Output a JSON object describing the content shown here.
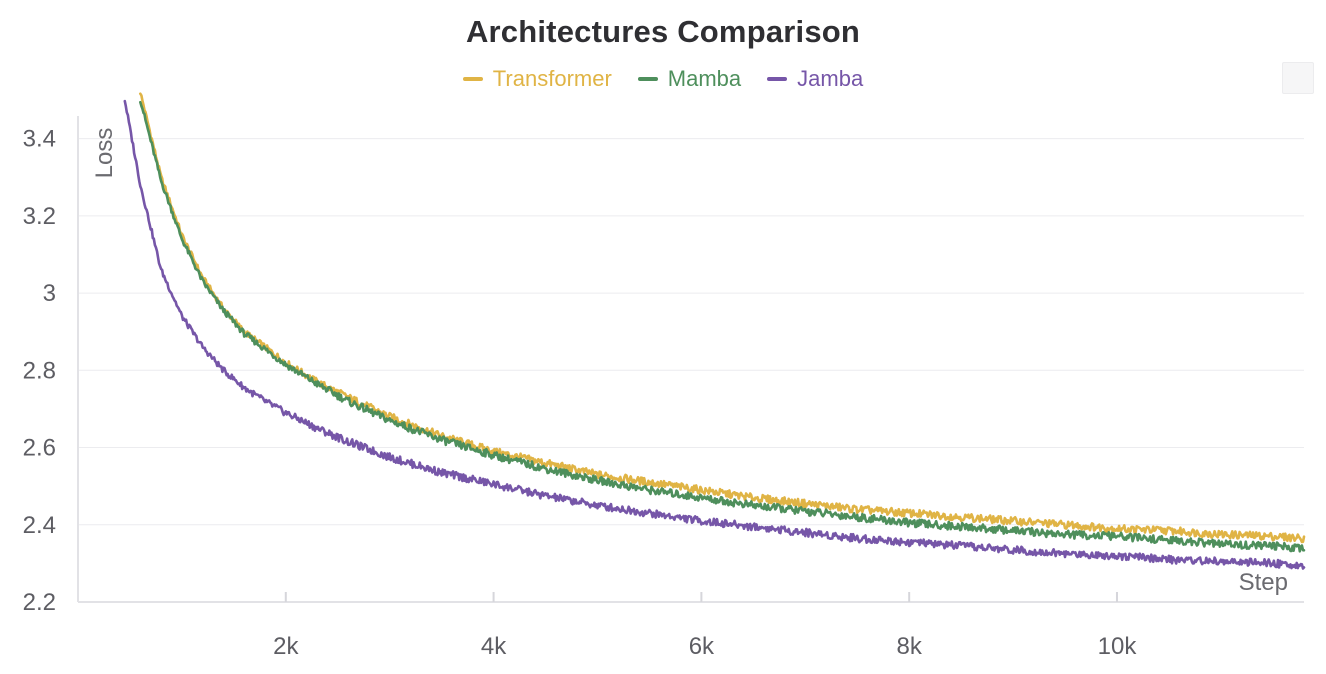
{
  "chart_data": {
    "type": "line",
    "title": "Architectures Comparison",
    "xlabel": "Step",
    "ylabel": "Loss",
    "xlim": [
      0,
      11800
    ],
    "ylim": [
      2.2,
      3.5
    ],
    "x_ticks": [
      {
        "value": 2000,
        "label": "2k"
      },
      {
        "value": 4000,
        "label": "4k"
      },
      {
        "value": 6000,
        "label": "6k"
      },
      {
        "value": 8000,
        "label": "8k"
      },
      {
        "value": 10000,
        "label": "10k"
      }
    ],
    "y_ticks": [
      {
        "value": 2.2,
        "label": "2.2"
      },
      {
        "value": 2.4,
        "label": "2.4"
      },
      {
        "value": 2.6,
        "label": "2.6"
      },
      {
        "value": 2.8,
        "label": "2.8"
      },
      {
        "value": 3.0,
        "label": "3"
      },
      {
        "value": 3.2,
        "label": "3.2"
      },
      {
        "value": 3.4,
        "label": "3.4"
      }
    ],
    "grid": true,
    "legend_position": "top-center",
    "series": [
      {
        "name": "Transformer",
        "color": "#e0b445",
        "x": [
          600,
          800,
          1000,
          1200,
          1400,
          1600,
          1800,
          2000,
          2300,
          2600,
          3000,
          3500,
          4000,
          4500,
          5000,
          5500,
          6000,
          6500,
          7000,
          7500,
          8000,
          8500,
          9000,
          9500,
          10000,
          10500,
          11000,
          11500,
          11800
        ],
        "y": [
          3.52,
          3.3,
          3.15,
          3.04,
          2.96,
          2.9,
          2.86,
          2.82,
          2.77,
          2.73,
          2.68,
          2.63,
          2.59,
          2.56,
          2.53,
          2.51,
          2.49,
          2.47,
          2.455,
          2.44,
          2.43,
          2.42,
          2.41,
          2.4,
          2.39,
          2.385,
          2.375,
          2.37,
          2.365
        ]
      },
      {
        "name": "Mamba",
        "color": "#4e8f5c",
        "x": [
          600,
          800,
          1000,
          1200,
          1400,
          1600,
          1800,
          2000,
          2300,
          2600,
          3000,
          3500,
          4000,
          4500,
          5000,
          5500,
          6000,
          6500,
          7000,
          7500,
          8000,
          8500,
          9000,
          9500,
          10000,
          10500,
          11000,
          11500,
          11800
        ],
        "y": [
          3.5,
          3.29,
          3.14,
          3.03,
          2.955,
          2.895,
          2.855,
          2.815,
          2.765,
          2.72,
          2.67,
          2.62,
          2.58,
          2.545,
          2.515,
          2.49,
          2.47,
          2.45,
          2.435,
          2.42,
          2.405,
          2.395,
          2.385,
          2.375,
          2.37,
          2.36,
          2.35,
          2.345,
          2.34
        ]
      },
      {
        "name": "Jamba",
        "color": "#7656a8",
        "x": [
          450,
          600,
          800,
          1000,
          1200,
          1400,
          1600,
          1800,
          2000,
          2300,
          2600,
          3000,
          3500,
          4000,
          4500,
          5000,
          5500,
          6000,
          6500,
          7000,
          7500,
          8000,
          8500,
          9000,
          9500,
          10000,
          10500,
          11000,
          11500,
          11800
        ],
        "y": [
          3.5,
          3.28,
          3.06,
          2.94,
          2.86,
          2.8,
          2.755,
          2.72,
          2.69,
          2.65,
          2.615,
          2.575,
          2.535,
          2.505,
          2.475,
          2.45,
          2.43,
          2.41,
          2.395,
          2.38,
          2.365,
          2.355,
          2.345,
          2.335,
          2.325,
          2.32,
          2.31,
          2.305,
          2.3,
          2.295
        ]
      }
    ]
  }
}
